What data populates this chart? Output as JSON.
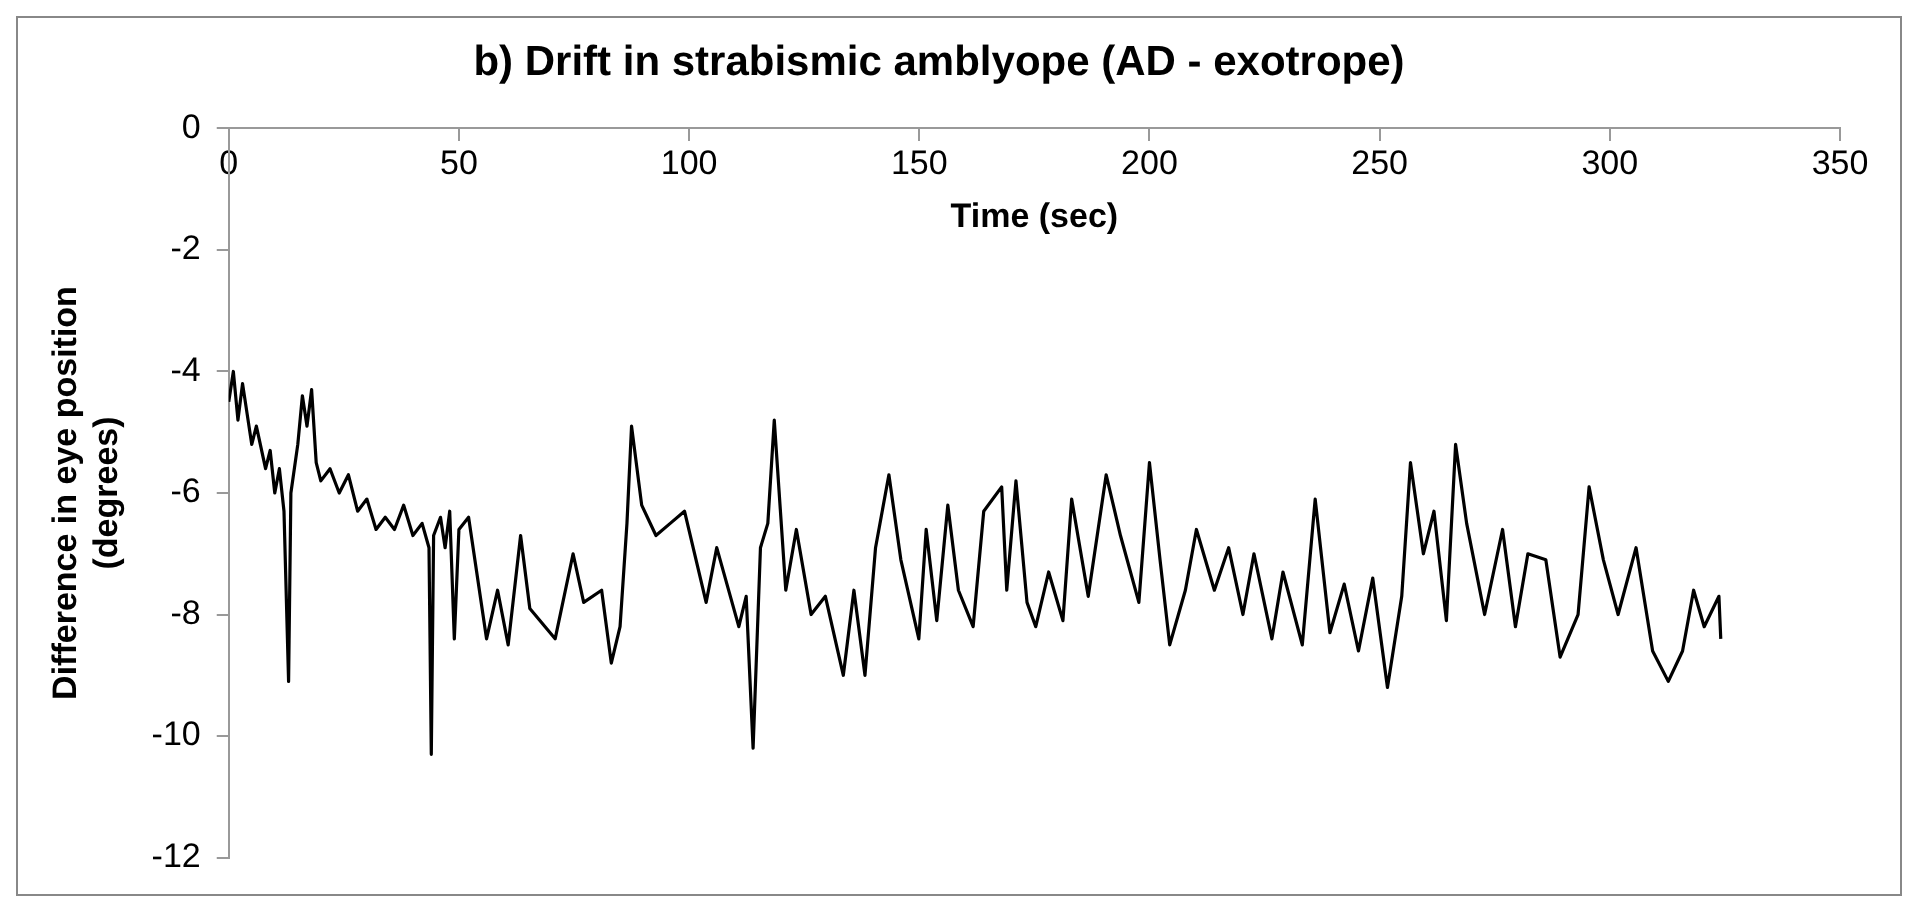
{
  "chart_data": {
    "type": "line",
    "title": "b) Drift in strabismic amblyope (AD - exotrope)",
    "xlabel": "Time (sec)",
    "ylabel": "Difference in eye position\n(degrees)",
    "xlim": [
      0,
      350
    ],
    "xticks": [
      0,
      50,
      100,
      150,
      200,
      250,
      300,
      350
    ],
    "ylim": [
      -12,
      0
    ],
    "yticks": [
      -12,
      -10,
      -8,
      -6,
      -4,
      -2,
      0
    ],
    "grid": false,
    "legend": false,
    "marker": "none",
    "line_style": "solid",
    "series": [
      {
        "color": "#000000",
        "x": [
          0,
          1,
          2,
          3,
          5,
          6,
          8,
          9,
          10,
          11,
          12,
          13,
          13.5,
          15,
          16,
          17,
          18,
          19,
          20,
          22,
          24,
          26,
          28,
          30,
          32,
          34,
          36,
          38,
          40,
          42,
          43.5,
          44,
          44.5,
          46,
          47,
          48,
          49,
          50,
          52.1,
          56,
          58.4,
          60.7,
          63.4,
          65.4,
          70.9,
          74.8,
          77.1,
          81,
          83.1,
          85,
          86.5,
          87.5,
          89.7,
          92.8,
          95.9,
          99,
          103.7,
          106,
          110.8,
          112.4,
          113.9,
          115.5,
          117.1,
          118.5,
          121,
          123.3,
          126.5,
          129.6,
          133.5,
          135.8,
          138.2,
          140.5,
          143.4,
          146,
          149.9,
          151.5,
          153.8,
          156.2,
          158.5,
          161.7,
          164,
          167.9,
          169,
          171,
          173.4,
          175.3,
          178.1,
          181.2,
          183.1,
          186.7,
          190.6,
          193.7,
          197.7,
          200,
          202.3,
          204.4,
          207.8,
          210.2,
          214.1,
          217.2,
          220.3,
          222.7,
          226.6,
          229,
          233.2,
          236,
          239.2,
          242.3,
          245.4,
          248.5,
          251.7,
          254.8,
          256.7,
          259.5,
          261.8,
          264.5,
          266.5,
          268.9,
          272.8,
          276.7,
          279.5,
          282.2,
          286.1,
          289.2,
          293.1,
          295.5,
          298.6,
          301.8,
          305.7,
          309.3,
          312.7,
          315.8,
          318.2,
          320.5,
          323.7,
          324.1
        ],
        "values": [
          -4.5,
          -4.0,
          -4.8,
          -4.2,
          -5.2,
          -4.9,
          -5.6,
          -5.3,
          -6.0,
          -5.6,
          -6.3,
          -9.1,
          -6.0,
          -5.2,
          -4.4,
          -4.9,
          -4.3,
          -5.5,
          -5.8,
          -5.6,
          -6.0,
          -5.7,
          -6.3,
          -6.1,
          -6.6,
          -6.4,
          -6.6,
          -6.2,
          -6.7,
          -6.5,
          -6.9,
          -10.3,
          -6.7,
          -6.4,
          -6.9,
          -6.3,
          -8.4,
          -6.6,
          -6.4,
          -8.4,
          -7.6,
          -8.5,
          -6.7,
          -7.9,
          -8.4,
          -7.0,
          -7.8,
          -7.6,
          -8.8,
          -8.2,
          -6.5,
          -4.9,
          -6.2,
          -6.7,
          -6.5,
          -6.3,
          -7.8,
          -6.9,
          -8.2,
          -7.7,
          -10.2,
          -6.9,
          -6.5,
          -4.8,
          -7.6,
          -6.6,
          -8.0,
          -7.7,
          -9.0,
          -7.6,
          -9.0,
          -6.9,
          -5.7,
          -7.1,
          -8.4,
          -6.6,
          -8.1,
          -6.2,
          -7.6,
          -8.2,
          -6.3,
          -5.9,
          -7.6,
          -5.8,
          -7.8,
          -8.2,
          -7.3,
          -8.1,
          -6.1,
          -7.7,
          -5.7,
          -6.7,
          -7.8,
          -5.5,
          -7.1,
          -8.5,
          -7.6,
          -6.6,
          -7.6,
          -6.9,
          -8.0,
          -7.0,
          -8.4,
          -7.3,
          -8.5,
          -6.1,
          -8.3,
          -7.5,
          -8.6,
          -7.4,
          -9.2,
          -7.7,
          -5.5,
          -7.0,
          -6.3,
          -8.1,
          -5.2,
          -6.5,
          -8.0,
          -6.6,
          -8.2,
          -7.0,
          -7.1,
          -8.7,
          -8.0,
          -5.9,
          -7.1,
          -8.0,
          -6.9,
          -8.6,
          -9.1,
          -8.6,
          -7.6,
          -8.2,
          -7.7,
          -8.4
        ]
      }
    ]
  }
}
